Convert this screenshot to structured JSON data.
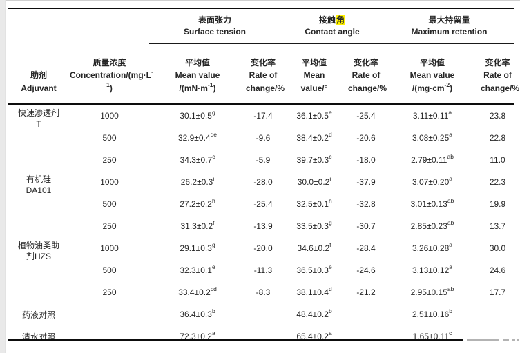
{
  "page": {
    "highlight_color": "#fff100"
  },
  "header": {
    "adjuvant": {
      "zh": "助剂",
      "en": "Adjuvant"
    },
    "concentration": {
      "zh": "质量浓度",
      "en_pre": "Concentration/(mg·L",
      "en_sup": "-1",
      "en_post": ")"
    },
    "groups": {
      "surface_tension": {
        "zh": "表面张力",
        "en": "Surface tension"
      },
      "contact_angle": {
        "zh_pre": "接触",
        "zh_highlight": "角",
        "en": "Contact angle"
      },
      "max_retention": {
        "zh": "最大持留量",
        "en": "Maximum retention"
      }
    },
    "subcols": {
      "st_mean": {
        "zh": "平均值",
        "l2": "Mean value",
        "l3_pre": "/(mN·m",
        "l3_sup": "-1",
        "l3_post": ")"
      },
      "st_rate": {
        "zh": "变化率",
        "l2": "Rate of",
        "l3": "change/%"
      },
      "ca_mean": {
        "zh": "平均值",
        "l2": "Mean",
        "l3": "value/°"
      },
      "ca_rate": {
        "zh": "变化率",
        "l2": "Rate of",
        "l3": "change/%"
      },
      "mr_mean": {
        "zh": "平均值",
        "l2": "Mean value",
        "l3_pre": "/(mg·cm",
        "l3_sup": "-2",
        "l3_post": ")"
      },
      "mr_rate": {
        "zh": "变化率",
        "l2": "Rate of",
        "l3": "change/%"
      }
    }
  },
  "rows": [
    {
      "adj1": "快速渗透剂",
      "adj2": "T",
      "conc": "1000",
      "st": "30.1±0.5",
      "st_s": "g",
      "st_r": "-17.4",
      "ca": "36.1±0.5",
      "ca_s": "e",
      "ca_r": "-25.4",
      "mr": "3.11±0.11",
      "mr_s": "a",
      "mr_r": "23.8"
    },
    {
      "conc": "500",
      "st": "32.9±0.4",
      "st_s": "de",
      "st_r": "-9.6",
      "ca": "38.4±0.2",
      "ca_s": "d",
      "ca_r": "-20.6",
      "mr": "3.08±0.25",
      "mr_s": "a",
      "mr_r": "22.8"
    },
    {
      "conc": "250",
      "st": "34.3±0.7",
      "st_s": "c",
      "st_r": "-5.9",
      "ca": "39.7±0.3",
      "ca_s": "c",
      "ca_r": "-18.0",
      "mr": "2.79±0.11",
      "mr_s": "ab",
      "mr_r": "11.0"
    },
    {
      "adj1": "有机硅",
      "adj2": "DA101",
      "conc": "1000",
      "st": "26.2±0.3",
      "st_s": "i",
      "st_r": "-28.0",
      "ca": "30.0±0.2",
      "ca_s": "i",
      "ca_r": "-37.9",
      "mr": "3.07±0.20",
      "mr_s": "a",
      "mr_r": "22.3"
    },
    {
      "conc": "500",
      "st": "27.2±0.2",
      "st_s": "h",
      "st_r": "-25.4",
      "ca": "32.5±0.1",
      "ca_s": "h",
      "ca_r": "-32.8",
      "mr": "3.01±0.13",
      "mr_s": "ab",
      "mr_r": "19.9"
    },
    {
      "conc": "250",
      "st": "31.3±0.2",
      "st_s": "f",
      "st_r": "-13.9",
      "ca": "33.5±0.3",
      "ca_s": "g",
      "ca_r": "-30.7",
      "mr": "2.85±0.23",
      "mr_s": "ab",
      "mr_r": "13.7"
    },
    {
      "adj1": "植物油类助",
      "adj2": "剂HZS",
      "conc": "1000",
      "st": "29.1±0.3",
      "st_s": "g",
      "st_r": "-20.0",
      "ca": "34.6±0.2",
      "ca_s": "f",
      "ca_r": "-28.4",
      "mr": "3.26±0.28",
      "mr_s": "a",
      "mr_r": "30.0"
    },
    {
      "conc": "500",
      "st": "32.3±0.1",
      "st_s": "e",
      "st_r": "-11.3",
      "ca": "36.5±0.3",
      "ca_s": "e",
      "ca_r": "-24.6",
      "mr": "3.13±0.12",
      "mr_s": "a",
      "mr_r": "24.6"
    },
    {
      "conc": "250",
      "st": "33.4±0.2",
      "st_s": "cd",
      "st_r": "-8.3",
      "ca": "38.1±0.4",
      "ca_s": "d",
      "ca_r": "-21.2",
      "mr": "2.95±0.15",
      "mr_s": "ab",
      "mr_r": "17.7"
    },
    {
      "adj1": "药液对照",
      "st": "36.4±0.3",
      "st_s": "b",
      "ca": "48.4±0.2",
      "ca_s": "b",
      "mr": "2.51±0.16",
      "mr_s": "b"
    },
    {
      "adj1": "清水对照",
      "st": "72.3±0.2",
      "st_s": "a",
      "ca": "65.4±0.2",
      "ca_s": "a",
      "mr": "1.65±0.11",
      "mr_s": "c"
    }
  ]
}
